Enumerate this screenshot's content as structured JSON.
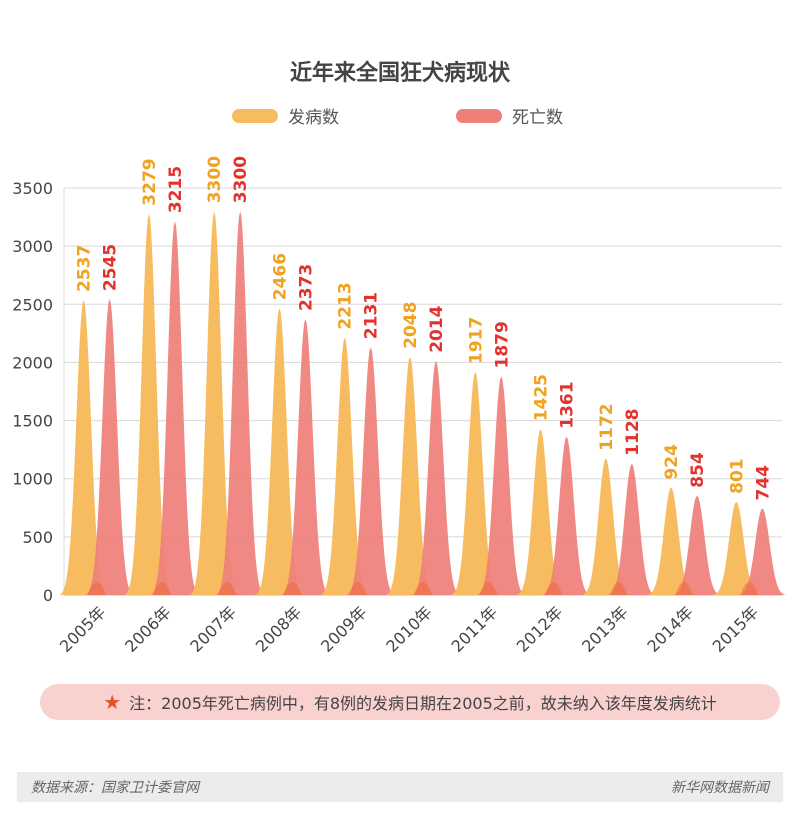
{
  "colors": {
    "incidence": "#f7bc5f",
    "deaths": "#ef7f78",
    "overlap": "#ec6b3e",
    "incidence_label": "#f1a21e",
    "deaths_label": "#e5312d",
    "grid": "#d8d8d8",
    "axis_text": "#444444",
    "note_bg": "#f9d2cf",
    "star": "#e8502a"
  },
  "chart_data": {
    "type": "area",
    "title": "近年来全国狂犬病现状",
    "categories": [
      "2005年",
      "2006年",
      "2007年",
      "2008年",
      "2009年",
      "2010年",
      "2011年",
      "2012年",
      "2013年",
      "2014年",
      "2015年"
    ],
    "series": [
      {
        "name": "发病数",
        "values": [
          2537,
          3279,
          3300,
          2466,
          2213,
          2048,
          1917,
          1425,
          1172,
          924,
          801
        ]
      },
      {
        "name": "死亡数",
        "values": [
          2545,
          3215,
          3300,
          2373,
          2131,
          2014,
          1879,
          1361,
          1128,
          854,
          744
        ]
      }
    ],
    "ylim": [
      0,
      3500
    ],
    "yticks": [
      "0",
      "500",
      "1000",
      "1500",
      "2000",
      "2500",
      "3000",
      "3500"
    ],
    "grid": true,
    "legend_position": "top-center",
    "data_labels": true
  },
  "note": {
    "icon": "star-icon",
    "text": "注：2005年死亡病例中，有8例的发病日期在2005之前，故未纳入该年度发病统计"
  },
  "footer": {
    "source": "数据来源：国家卫计委官网",
    "publisher": "新华网数据新闻"
  }
}
